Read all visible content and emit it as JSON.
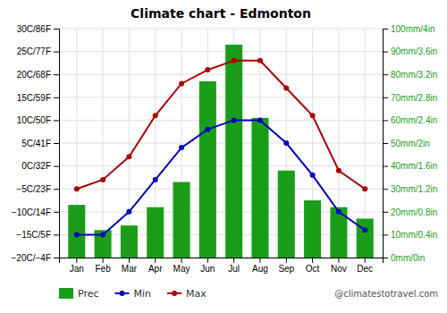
{
  "chart_data": {
    "type": "bar",
    "title": "Climate chart - Edmonton",
    "categories": [
      "Jan",
      "Feb",
      "Mar",
      "Apr",
      "May",
      "Jun",
      "Jul",
      "Aug",
      "Sep",
      "Oct",
      "Nov",
      "Dec"
    ],
    "series": [
      {
        "name": "Prec",
        "type": "bar",
        "axis": "y2",
        "color": "#1a9e1a",
        "values": [
          23,
          12,
          14,
          22,
          33,
          77,
          93,
          61,
          38,
          25,
          22,
          17
        ]
      },
      {
        "name": "Min",
        "type": "line",
        "color": "#0000bb",
        "marker": "circle",
        "values": [
          -15,
          -15,
          -10,
          -3,
          4,
          8,
          10,
          10,
          5,
          -2,
          -10,
          -14
        ]
      },
      {
        "name": "Max",
        "type": "line",
        "color": "#aa0000",
        "marker": "circle",
        "values": [
          -5,
          -3,
          2,
          11,
          18,
          21,
          23,
          23,
          17,
          11,
          -1,
          -5
        ]
      }
    ],
    "ylim": [
      -20,
      30
    ],
    "yticks": [
      {
        "value": -20,
        "label": "−20C/−4F"
      },
      {
        "value": -15,
        "label": "−15C/5F"
      },
      {
        "value": -10,
        "label": "−10C/14F"
      },
      {
        "value": -5,
        "label": "−5C/23F"
      },
      {
        "value": 0,
        "label": "0C/32F"
      },
      {
        "value": 5,
        "label": "5C/41F"
      },
      {
        "value": 10,
        "label": "10C/50F"
      },
      {
        "value": 15,
        "label": "15C/59F"
      },
      {
        "value": 20,
        "label": "20C/68F"
      },
      {
        "value": 25,
        "label": "25C/77F"
      },
      {
        "value": 30,
        "label": "30C/86F"
      }
    ],
    "y2lim": [
      0,
      100
    ],
    "y2ticks": [
      {
        "value": 0,
        "label": "0mm/0in"
      },
      {
        "value": 10,
        "label": "10mm/0.4in"
      },
      {
        "value": 20,
        "label": "20mm/0.8in"
      },
      {
        "value": 30,
        "label": "30mm/1.2in"
      },
      {
        "value": 40,
        "label": "40mm/1.6in"
      },
      {
        "value": 50,
        "label": "50mm/2in"
      },
      {
        "value": 60,
        "label": "60mm/2.4in"
      },
      {
        "value": 70,
        "label": "70mm/2.8in"
      },
      {
        "value": 80,
        "label": "80mm/3.2in"
      },
      {
        "value": 90,
        "label": "90mm/3.6in"
      },
      {
        "value": 100,
        "label": "100mm/4in"
      }
    ],
    "grid": true,
    "legend": "bottom",
    "annotations": [
      "@climatestotravel.com"
    ]
  }
}
